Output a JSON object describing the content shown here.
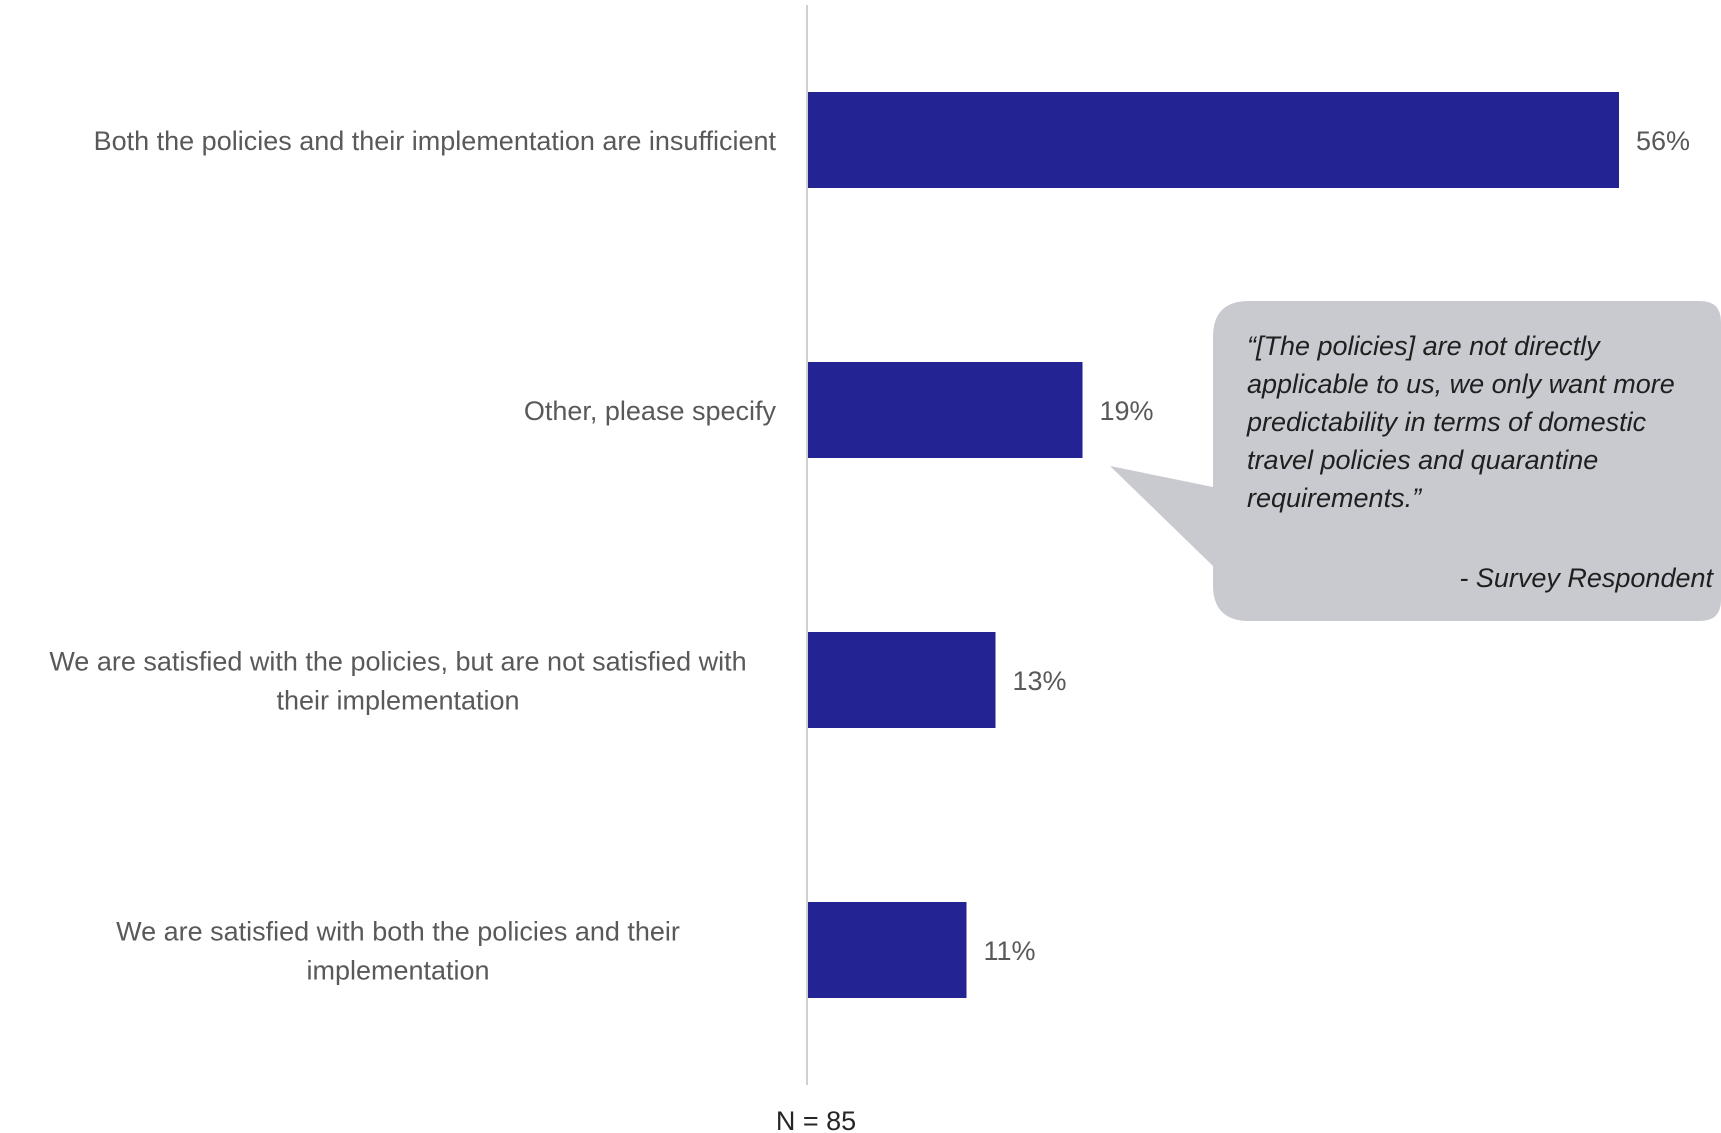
{
  "chart_data": {
    "type": "bar",
    "orientation": "horizontal",
    "categories": [
      [
        "Both the policies and their implementation are insufficient"
      ],
      [
        "Other, please specify"
      ],
      [
        "We are satisfied with the policies, but are not satisfied with",
        "their implementation"
      ],
      [
        "We are satisfied with both the policies and their",
        "implementation"
      ]
    ],
    "values": [
      56,
      19,
      13,
      11
    ],
    "value_labels": [
      "56%",
      "19%",
      "13%",
      "11%"
    ],
    "xlim": [
      0,
      60
    ],
    "grid": false,
    "bar_color": "#232394",
    "axis_color": "#d0d0d0",
    "footnote": "N = 85",
    "callout": {
      "lines": [
        "“[The policies] are not directly",
        "applicable to us, we only want more",
        "predictability in terms of domestic",
        "travel policies and quarantine",
        "requirements.”"
      ],
      "attribution": "- Survey Respondent",
      "fill": "#c8cacf",
      "points_to_category": 1
    }
  }
}
